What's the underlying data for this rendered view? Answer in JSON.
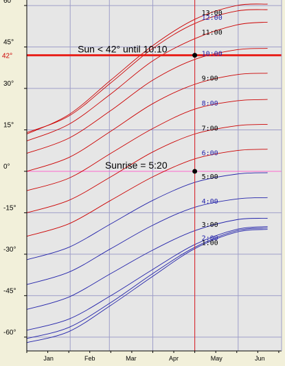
{
  "chart_data": {
    "type": "line",
    "xlabel": "",
    "ylabel": "",
    "x_tick_labels": [
      "Jan",
      "Feb",
      "Mar",
      "Apr",
      "May",
      "Jun"
    ],
    "y_ticks": [
      60,
      45,
      30,
      15,
      0,
      -15,
      -30,
      -45,
      -60
    ],
    "y_tick_labels": [
      "60°",
      "45°",
      "30°",
      "15°",
      "0°",
      "-15°",
      "-30°",
      "-45°",
      "-60°"
    ],
    "ylim": [
      -65,
      62
    ],
    "grid": true,
    "threshold": {
      "value": 42,
      "label": "42°"
    },
    "marker_date": "May",
    "x_day_marker": 120,
    "annotations": [
      {
        "text": "Sun < 42° until 10:10",
        "day": 120,
        "value": 42
      },
      {
        "text": "Sunrise = 5:20",
        "day": 120,
        "value": 0
      }
    ],
    "series": [
      {
        "label": "13:00",
        "color": "#cc0000",
        "label_color": "#000000",
        "values": [
          [
            0,
            13.5
          ],
          [
            30,
            20.5
          ],
          [
            60,
            33.0
          ],
          [
            90,
            45.5
          ],
          [
            120,
            55.0
          ],
          [
            150,
            60.0
          ],
          [
            172,
            60.5
          ]
        ]
      },
      {
        "label": "12:00",
        "color": "#cc0000",
        "label_color": "#2222aa",
        "values": [
          [
            0,
            14.0
          ],
          [
            30,
            20.0
          ],
          [
            60,
            32.0
          ],
          [
            90,
            44.5
          ],
          [
            120,
            53.5
          ],
          [
            150,
            58.0
          ],
          [
            172,
            58.5
          ]
        ]
      },
      {
        "label": "11:00",
        "color": "#cc0000",
        "label_color": "#000000",
        "values": [
          [
            0,
            11.0
          ],
          [
            30,
            17.0
          ],
          [
            60,
            28.0
          ],
          [
            90,
            40.0
          ],
          [
            120,
            48.0
          ],
          [
            150,
            53.0
          ],
          [
            172,
            54.0
          ]
        ]
      },
      {
        "label": "10:00",
        "color": "#cc0000",
        "label_color": "#2222aa",
        "values": [
          [
            0,
            6.5
          ],
          [
            30,
            12.0
          ],
          [
            60,
            22.0
          ],
          [
            90,
            33.0
          ],
          [
            120,
            40.5
          ],
          [
            150,
            44.0
          ],
          [
            172,
            44.5
          ]
        ]
      },
      {
        "label": "9:00",
        "color": "#cc0000",
        "label_color": "#000000",
        "values": [
          [
            0,
            0.0
          ],
          [
            30,
            5.0
          ],
          [
            60,
            14.5
          ],
          [
            90,
            24.5
          ],
          [
            120,
            31.5
          ],
          [
            150,
            35.0
          ],
          [
            172,
            35.5
          ]
        ]
      },
      {
        "label": "8:00",
        "color": "#cc0000",
        "label_color": "#2222aa",
        "values": [
          [
            0,
            -7.0
          ],
          [
            30,
            -2.5
          ],
          [
            60,
            6.5
          ],
          [
            90,
            15.5
          ],
          [
            120,
            22.5
          ],
          [
            150,
            25.5
          ],
          [
            172,
            26.0
          ]
        ]
      },
      {
        "label": "7:00",
        "color": "#cc0000",
        "label_color": "#000000",
        "values": [
          [
            0,
            -15.0
          ],
          [
            30,
            -10.5
          ],
          [
            60,
            -2.0
          ],
          [
            90,
            7.0
          ],
          [
            120,
            13.5
          ],
          [
            150,
            16.5
          ],
          [
            172,
            17.0
          ]
        ]
      },
      {
        "label": "6:00",
        "color": "#cc0000",
        "label_color": "#2222aa",
        "values": [
          [
            0,
            -23.5
          ],
          [
            30,
            -19.0
          ],
          [
            60,
            -10.5
          ],
          [
            90,
            -2.0
          ],
          [
            120,
            4.5
          ],
          [
            150,
            7.5
          ],
          [
            172,
            8.0
          ]
        ]
      },
      {
        "label": "5:00",
        "color": "#2222aa",
        "label_color": "#000000",
        "values": [
          [
            0,
            -32.0
          ],
          [
            30,
            -27.5
          ],
          [
            60,
            -19.0
          ],
          [
            90,
            -10.5
          ],
          [
            120,
            -4.0
          ],
          [
            150,
            -1.0
          ],
          [
            172,
            -0.5
          ]
        ]
      },
      {
        "label": "4:00",
        "color": "#2222aa",
        "label_color": "#2222aa",
        "values": [
          [
            0,
            -41.0
          ],
          [
            30,
            -36.5
          ],
          [
            60,
            -28.0
          ],
          [
            90,
            -19.5
          ],
          [
            120,
            -13.0
          ],
          [
            150,
            -10.0
          ],
          [
            172,
            -9.5
          ]
        ]
      },
      {
        "label": "3:00",
        "color": "#2222aa",
        "label_color": "#000000",
        "values": [
          [
            0,
            -50.0
          ],
          [
            30,
            -45.5
          ],
          [
            60,
            -37.0
          ],
          [
            90,
            -28.5
          ],
          [
            120,
            -21.5
          ],
          [
            150,
            -17.5
          ],
          [
            172,
            -17.0
          ]
        ]
      },
      {
        "label": "2:00",
        "color": "#2222aa",
        "label_color": "#2222aa",
        "values": [
          [
            0,
            -57.5
          ],
          [
            30,
            -53.5
          ],
          [
            60,
            -45.0
          ],
          [
            90,
            -35.5
          ],
          [
            120,
            -26.5
          ],
          [
            150,
            -21.0
          ],
          [
            172,
            -20.0
          ]
        ]
      },
      {
        "label": "1:00",
        "color": "#2222aa",
        "label_color": "#000000",
        "values": [
          [
            0,
            -60.5
          ],
          [
            30,
            -56.5
          ],
          [
            60,
            -47.5
          ],
          [
            90,
            -37.0
          ],
          [
            120,
            -27.5
          ],
          [
            150,
            -21.5
          ],
          [
            172,
            -20.5
          ]
        ]
      },
      {
        "label": "",
        "color": "#2222aa",
        "label_color": "#2222aa",
        "values": [
          [
            0,
            -62.0
          ],
          [
            30,
            -58.0
          ],
          [
            60,
            -48.5
          ],
          [
            90,
            -38.0
          ],
          [
            120,
            -28.0
          ],
          [
            150,
            -22.0
          ],
          [
            172,
            -21.0
          ]
        ]
      }
    ],
    "colors": {
      "background": "#f2f0da",
      "plot_bg": "#e6e6e6",
      "grid": "#9e9ec8",
      "threshold": "#e8201a",
      "threshold_label": "#cc0000",
      "marker_line": "#e02020",
      "horizon": "#ff66cc"
    }
  }
}
